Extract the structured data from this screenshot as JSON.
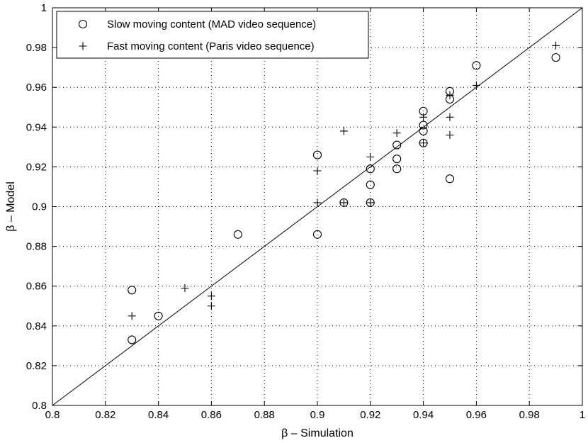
{
  "chart_data": {
    "type": "scatter",
    "title": "",
    "xlabel": "β – Simulation",
    "ylabel": "β – Model",
    "xlim": [
      0.8,
      1.0
    ],
    "ylim": [
      0.8,
      1.0
    ],
    "xticks": [
      "0.8",
      "0.82",
      "0.84",
      "0.86",
      "0.88",
      "0.9",
      "0.92",
      "0.94",
      "0.96",
      "0.98",
      "1"
    ],
    "yticks": [
      "0.8",
      "0.82",
      "0.84",
      "0.86",
      "0.88",
      "0.9",
      "0.92",
      "0.94",
      "0.96",
      "0.98",
      "1"
    ],
    "grid": true,
    "grid_style": "dotted",
    "legend_position": "top-left",
    "reference_line": {
      "x": [
        0.8,
        1.0
      ],
      "y": [
        0.8,
        1.0
      ]
    },
    "series": [
      {
        "name": "Slow moving content (MAD video sequence)",
        "marker": "circle",
        "color": "#000000",
        "points": [
          [
            0.83,
            0.858
          ],
          [
            0.83,
            0.833
          ],
          [
            0.84,
            0.845
          ],
          [
            0.87,
            0.886
          ],
          [
            0.9,
            0.926
          ],
          [
            0.9,
            0.886
          ],
          [
            0.91,
            0.902
          ],
          [
            0.92,
            0.919
          ],
          [
            0.92,
            0.911
          ],
          [
            0.92,
            0.902
          ],
          [
            0.93,
            0.931
          ],
          [
            0.93,
            0.924
          ],
          [
            0.93,
            0.919
          ],
          [
            0.94,
            0.948
          ],
          [
            0.94,
            0.941
          ],
          [
            0.94,
            0.938
          ],
          [
            0.94,
            0.932
          ],
          [
            0.95,
            0.958
          ],
          [
            0.95,
            0.954
          ],
          [
            0.95,
            0.914
          ],
          [
            0.96,
            0.971
          ],
          [
            0.99,
            0.975
          ]
        ]
      },
      {
        "name": "Fast moving content (Paris video sequence)",
        "marker": "plus",
        "color": "#000000",
        "points": [
          [
            0.83,
            0.845
          ],
          [
            0.85,
            0.859
          ],
          [
            0.86,
            0.855
          ],
          [
            0.86,
            0.85
          ],
          [
            0.9,
            0.918
          ],
          [
            0.9,
            0.902
          ],
          [
            0.91,
            0.902
          ],
          [
            0.91,
            0.938
          ],
          [
            0.92,
            0.925
          ],
          [
            0.92,
            0.902
          ],
          [
            0.93,
            0.937
          ],
          [
            0.94,
            0.945
          ],
          [
            0.94,
            0.932
          ],
          [
            0.95,
            0.956
          ],
          [
            0.95,
            0.945
          ],
          [
            0.95,
            0.936
          ],
          [
            0.96,
            0.961
          ],
          [
            0.99,
            0.981
          ]
        ]
      }
    ]
  }
}
